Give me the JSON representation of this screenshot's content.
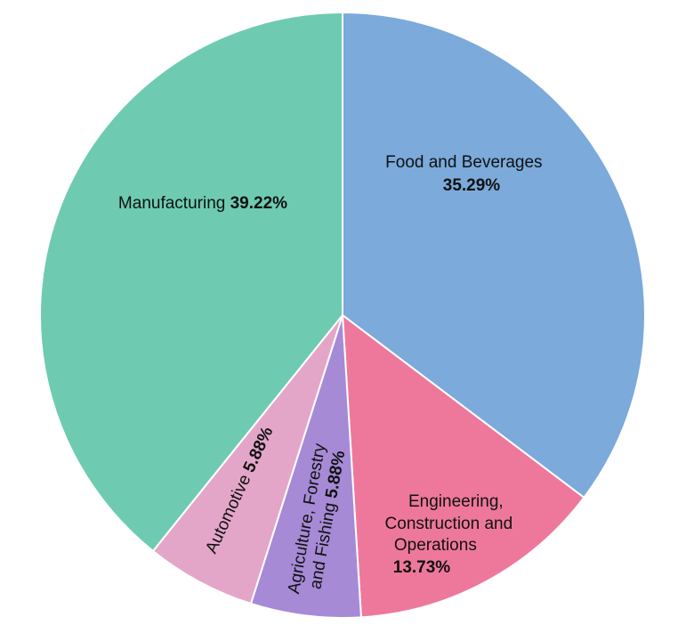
{
  "chart_data": {
    "type": "pie",
    "start": "12 o'clock",
    "direction": "clockwise",
    "slices": [
      {
        "name": "Food and Beverages",
        "value": 35.29,
        "label": "35.29%",
        "color": "#7BAADB"
      },
      {
        "name": "Engineering, Construction and Operations",
        "value": 13.73,
        "label": "13.73%",
        "color": "#EE789C"
      },
      {
        "name": "Agriculture, Forestry and Fishing",
        "value": 5.88,
        "label": "5.88%",
        "color": "#A68AD6"
      },
      {
        "name": "Automotive",
        "value": 5.88,
        "label": "5.88%",
        "color": "#E3A6C9"
      },
      {
        "name": "Manufacturing",
        "value": 39.22,
        "label": "39.22%",
        "color": "#6ECBB1"
      }
    ]
  }
}
